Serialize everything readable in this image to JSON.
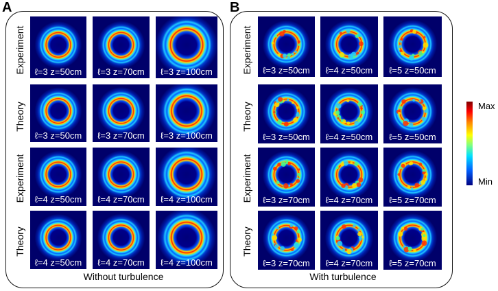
{
  "panels": [
    {
      "letter": "A",
      "caption": "Without turbulence",
      "rows": [
        {
          "label": "Experiment",
          "mode": "exp",
          "captions": [
            "ℓ=3 z=50cm",
            "ℓ=3 z=70cm",
            "ℓ=3 z=100cm"
          ]
        },
        {
          "label": "Theory",
          "mode": "theory",
          "captions": [
            "ℓ=3 z=50cm",
            "ℓ=3 z=70cm",
            "ℓ=3 z=100cm"
          ]
        },
        {
          "label": "Experiment",
          "mode": "exp",
          "captions": [
            "ℓ=4 z=50cm",
            "ℓ=4 z=70cm",
            "ℓ=4 z=100cm"
          ]
        },
        {
          "label": "Theory",
          "mode": "theory",
          "captions": [
            "ℓ=4 z=50cm",
            "ℓ=4 z=70cm",
            "ℓ=4 z=100cm"
          ]
        }
      ]
    },
    {
      "letter": "B",
      "caption": "With turbulence",
      "rows": [
        {
          "label": "Experiment",
          "mode": "turb-exp",
          "captions": [
            "ℓ=3 z=50cm",
            "ℓ=4 z=50cm",
            "ℓ=5 z=50cm"
          ]
        },
        {
          "label": "Theory",
          "mode": "turb-theory",
          "captions": [
            "ℓ=3 z=50cm",
            "ℓ=4 z=50cm",
            "ℓ=5 z=50cm"
          ]
        },
        {
          "label": "Experiment",
          "mode": "turb-exp",
          "captions": [
            "ℓ=3 z=70cm",
            "ℓ=4 z=70cm",
            "ℓ=5 z=70cm"
          ]
        },
        {
          "label": "Theory",
          "mode": "turb-theory",
          "captions": [
            "ℓ=3 z=70cm",
            "ℓ=4 z=70cm",
            "ℓ=5 z=70cm"
          ]
        }
      ]
    }
  ],
  "colorbar": {
    "max_label": "Max",
    "min_label": "Min",
    "colors": [
      "#7f0000",
      "#ff0000",
      "#ff8800",
      "#ffff00",
      "#80ff80",
      "#00e0ff",
      "#0060ff",
      "#000080"
    ]
  }
}
